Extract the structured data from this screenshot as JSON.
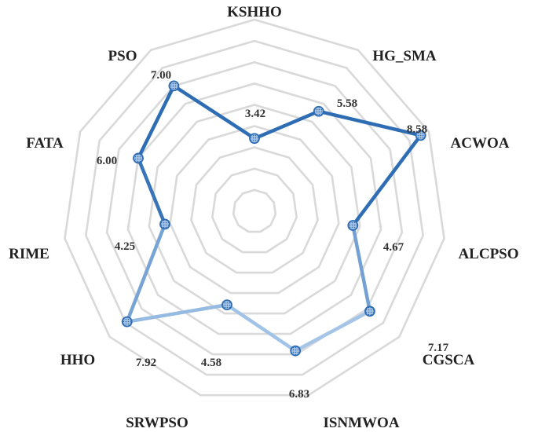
{
  "chart_data": {
    "type": "radar",
    "title": "",
    "categories": [
      "KSHHO",
      "HG_SMA",
      "ACWOA",
      "ALCPSO",
      "CGSCA",
      "ISNMWOA",
      "SRWPSO",
      "HHO",
      "RIME",
      "FATA",
      "PSO"
    ],
    "series": [
      {
        "values": [
          3.42,
          5.58,
          8.58,
          4.67,
          7.17,
          6.83,
          4.58,
          7.92,
          4.25,
          6.0,
          7.0
        ],
        "value_labels": [
          "3.42",
          "5.58",
          "8.58",
          "4.67",
          "7.17",
          "6.83",
          "4.58",
          "7.92",
          "4.25",
          "6.00",
          "7.00"
        ]
      }
    ],
    "range": [
      0,
      9
    ],
    "rings": 9,
    "grid": true,
    "legend": "none",
    "colors": {
      "grid": "#d9d9d9",
      "line_dark": "#2e6db4",
      "line_light": "#a9c9ea",
      "marker_fill": "#a7c3e4",
      "marker_stroke": "#2e6db4"
    }
  }
}
